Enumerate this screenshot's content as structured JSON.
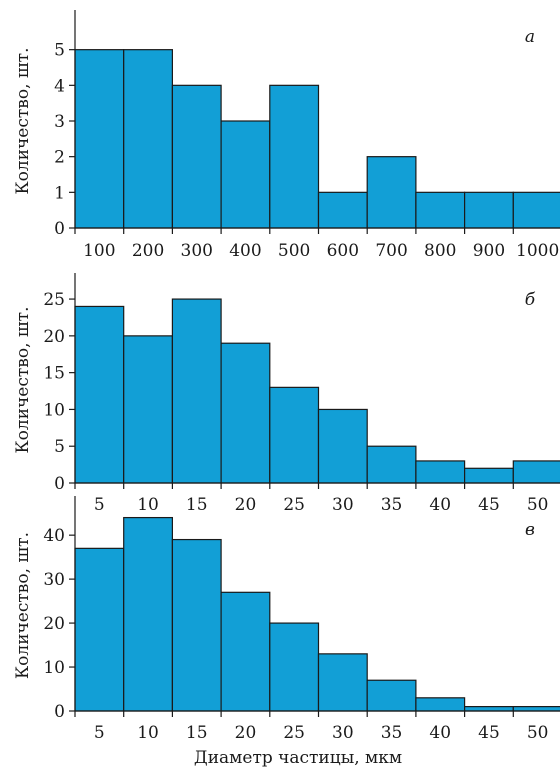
{
  "figure": {
    "xlabel": "Диаметр частицы, мкм"
  },
  "chart_data": [
    {
      "type": "bar",
      "panel": "а",
      "categories": [
        "100",
        "200",
        "300",
        "400",
        "500",
        "600",
        "700",
        "800",
        "900",
        "1000"
      ],
      "values": [
        5,
        5,
        4,
        3,
        4,
        1,
        2,
        1,
        1,
        1
      ],
      "yticks": [
        0,
        1,
        2,
        3,
        4,
        5
      ],
      "ylim": [
        0,
        6
      ],
      "ylabel": "Количество, шт.",
      "xlabel": ""
    },
    {
      "type": "bar",
      "panel": "б",
      "categories": [
        "5",
        "10",
        "15",
        "20",
        "25",
        "30",
        "35",
        "40",
        "45",
        "50"
      ],
      "values": [
        24,
        20,
        25,
        19,
        13,
        10,
        5,
        3,
        2,
        3
      ],
      "yticks": [
        0,
        5,
        10,
        15,
        20,
        25
      ],
      "ylim": [
        0,
        28
      ],
      "ylabel": "Количество, шт.",
      "xlabel": ""
    },
    {
      "type": "bar",
      "panel": "в",
      "categories": [
        "5",
        "10",
        "15",
        "20",
        "25",
        "30",
        "35",
        "40",
        "45",
        "50"
      ],
      "values": [
        37,
        44,
        39,
        27,
        20,
        13,
        7,
        3,
        1,
        1
      ],
      "yticks": [
        0,
        10,
        20,
        30,
        40
      ],
      "ylim": [
        0,
        48
      ],
      "ylabel": "Количество, шт.",
      "xlabel": "Диаметр частицы, мкм"
    }
  ]
}
